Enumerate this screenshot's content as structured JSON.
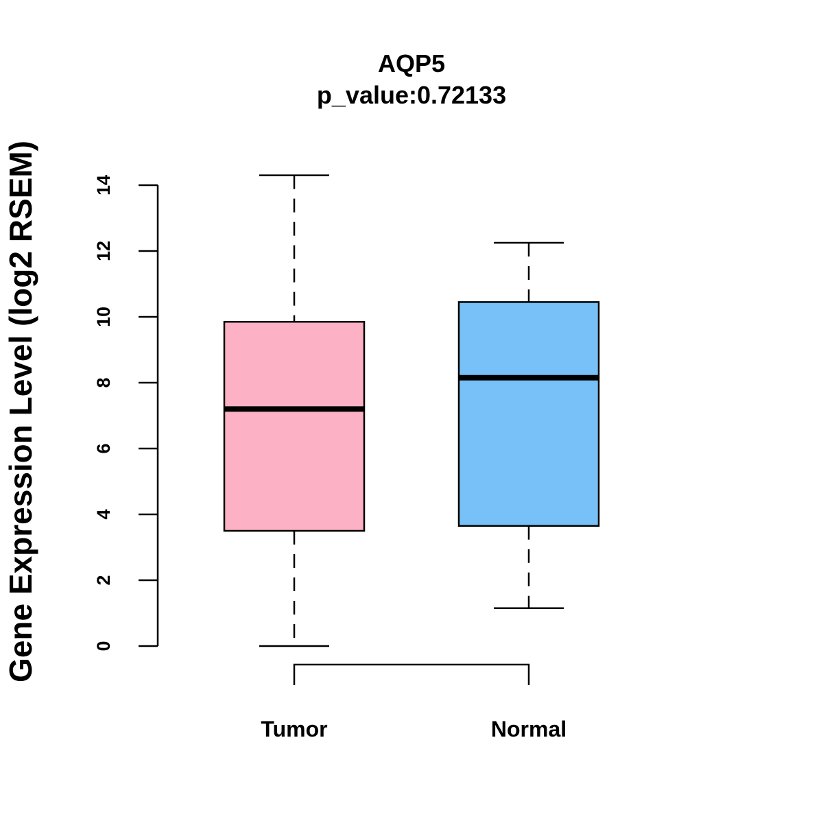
{
  "chart_data": {
    "type": "boxplot",
    "title": "AQP5",
    "subtitle": "p_value:0.72133",
    "ylabel": "Gene Expression Level (log2 RSEM)",
    "xlabel": "",
    "ylim": [
      0,
      14
    ],
    "yticks": [
      "0",
      "2",
      "4",
      "6",
      "8",
      "10",
      "12",
      "14"
    ],
    "categories": [
      "Tumor",
      "Normal"
    ],
    "boxes": [
      {
        "name": "Tumor",
        "whisker_low": 0,
        "q1": 3.5,
        "median": 7.2,
        "q3": 9.85,
        "whisker_high": 14.3,
        "color": "#FDB1C4"
      },
      {
        "name": "Normal",
        "whisker_low": 1.15,
        "q1": 3.65,
        "median": 8.15,
        "q3": 10.45,
        "whisker_high": 12.25,
        "color": "#78C1F8"
      }
    ],
    "grid": false,
    "legend": "none"
  }
}
